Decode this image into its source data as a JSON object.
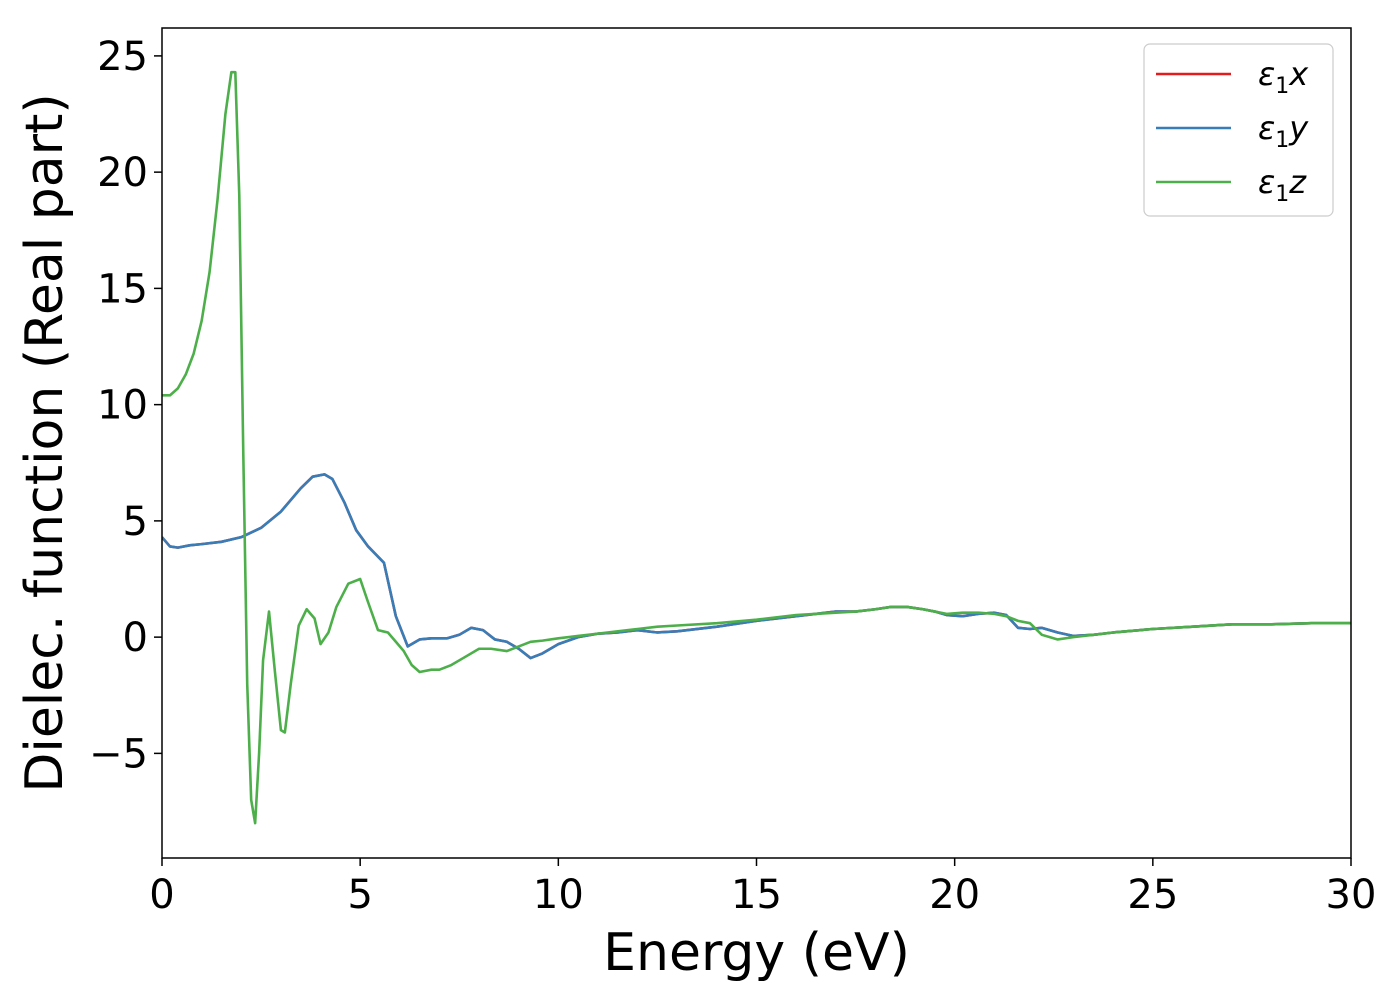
{
  "chart_data": {
    "type": "line",
    "xlabel": "Energy (eV)",
    "ylabel": "Dielec. function (Real part)",
    "xlim": [
      0,
      30
    ],
    "ylim": [
      -9.5,
      26.2
    ],
    "xticks": [
      0,
      5,
      10,
      15,
      20,
      25,
      30
    ],
    "yticks": [
      -5,
      0,
      5,
      10,
      15,
      20,
      25
    ],
    "grid": false,
    "legend_position": "top-right",
    "series": [
      {
        "name": "ε₁x",
        "legend_main": "ε",
        "legend_sub": "1",
        "legend_suffix": "x",
        "color": "#e41a1c",
        "x": [
          0,
          0.2,
          0.4,
          0.7,
          1.0,
          1.5,
          2.0,
          2.5,
          3.0,
          3.5,
          3.8,
          4.1,
          4.3,
          4.6,
          4.9,
          5.2,
          5.6,
          5.9,
          6.2,
          6.5,
          6.8,
          7.2,
          7.5,
          7.8,
          8.1,
          8.4,
          8.7,
          9.0,
          9.3,
          9.6,
          10.0,
          10.5,
          11.0,
          11.5,
          12.0,
          12.5,
          13.0,
          14.0,
          15.0,
          16.0,
          17.0,
          17.5,
          18.0,
          18.4,
          18.8,
          19.2,
          19.5,
          19.8,
          20.2,
          20.6,
          21.0,
          21.3,
          21.6,
          21.9,
          22.2,
          22.6,
          23.0,
          23.5,
          24.0,
          25.0,
          26.0,
          27.0,
          28.0,
          29.0,
          30.0
        ],
        "values": [
          4.3,
          3.9,
          3.85,
          3.95,
          4.0,
          4.1,
          4.3,
          4.7,
          5.4,
          6.4,
          6.9,
          7.0,
          6.8,
          5.8,
          4.6,
          3.9,
          3.2,
          0.9,
          -0.4,
          -0.1,
          -0.05,
          -0.05,
          0.1,
          0.4,
          0.3,
          -0.1,
          -0.2,
          -0.5,
          -0.9,
          -0.7,
          -0.3,
          0.0,
          0.15,
          0.2,
          0.3,
          0.2,
          0.25,
          0.45,
          0.7,
          0.9,
          1.1,
          1.1,
          1.2,
          1.3,
          1.3,
          1.2,
          1.1,
          0.95,
          0.9,
          1.0,
          1.05,
          0.95,
          0.4,
          0.35,
          0.4,
          0.2,
          0.05,
          0.1,
          0.2,
          0.35,
          0.45,
          0.55,
          0.55,
          0.6,
          0.6
        ]
      },
      {
        "name": "ε₁y",
        "legend_main": "ε",
        "legend_sub": "1",
        "legend_suffix": "y",
        "color": "#377eb8",
        "x": [
          0,
          0.2,
          0.4,
          0.7,
          1.0,
          1.5,
          2.0,
          2.5,
          3.0,
          3.5,
          3.8,
          4.1,
          4.3,
          4.6,
          4.9,
          5.2,
          5.6,
          5.9,
          6.2,
          6.5,
          6.8,
          7.2,
          7.5,
          7.8,
          8.1,
          8.4,
          8.7,
          9.0,
          9.3,
          9.6,
          10.0,
          10.5,
          11.0,
          11.5,
          12.0,
          12.5,
          13.0,
          14.0,
          15.0,
          16.0,
          17.0,
          17.5,
          18.0,
          18.4,
          18.8,
          19.2,
          19.5,
          19.8,
          20.2,
          20.6,
          21.0,
          21.3,
          21.6,
          21.9,
          22.2,
          22.6,
          23.0,
          23.5,
          24.0,
          25.0,
          26.0,
          27.0,
          28.0,
          29.0,
          30.0
        ],
        "values": [
          4.3,
          3.9,
          3.85,
          3.95,
          4.0,
          4.1,
          4.3,
          4.7,
          5.4,
          6.4,
          6.9,
          7.0,
          6.8,
          5.8,
          4.6,
          3.9,
          3.2,
          0.9,
          -0.4,
          -0.1,
          -0.05,
          -0.05,
          0.1,
          0.4,
          0.3,
          -0.1,
          -0.2,
          -0.5,
          -0.9,
          -0.7,
          -0.3,
          0.0,
          0.15,
          0.2,
          0.3,
          0.2,
          0.25,
          0.45,
          0.7,
          0.9,
          1.1,
          1.1,
          1.2,
          1.3,
          1.3,
          1.2,
          1.1,
          0.95,
          0.9,
          1.0,
          1.05,
          0.95,
          0.4,
          0.35,
          0.4,
          0.2,
          0.05,
          0.1,
          0.2,
          0.35,
          0.45,
          0.55,
          0.55,
          0.6,
          0.6
        ]
      },
      {
        "name": "ε₁z",
        "legend_main": "ε",
        "legend_sub": "1",
        "legend_suffix": "z",
        "color": "#4daf4a",
        "x": [
          0,
          0.2,
          0.4,
          0.6,
          0.8,
          1.0,
          1.2,
          1.4,
          1.6,
          1.75,
          1.85,
          1.95,
          2.05,
          2.15,
          2.25,
          2.35,
          2.45,
          2.55,
          2.7,
          2.85,
          3.0,
          3.1,
          3.25,
          3.45,
          3.65,
          3.85,
          4.0,
          4.2,
          4.4,
          4.7,
          5.0,
          5.2,
          5.45,
          5.7,
          5.9,
          6.1,
          6.3,
          6.5,
          6.8,
          7.0,
          7.3,
          7.6,
          8.0,
          8.3,
          8.7,
          9.0,
          9.3,
          9.6,
          10.0,
          10.5,
          11.0,
          11.5,
          12.0,
          12.5,
          13.0,
          14.0,
          15.0,
          16.0,
          17.0,
          17.5,
          18.0,
          18.4,
          18.8,
          19.2,
          19.5,
          19.8,
          20.2,
          20.6,
          21.0,
          21.3,
          21.6,
          21.9,
          22.2,
          22.6,
          23.0,
          23.5,
          24.0,
          25.0,
          26.0,
          27.0,
          28.0,
          29.0,
          30.0
        ],
        "values": [
          10.4,
          10.4,
          10.7,
          11.3,
          12.2,
          13.6,
          15.7,
          18.8,
          22.5,
          24.3,
          24.3,
          19.0,
          8.0,
          -2.0,
          -7.0,
          -8.0,
          -5.0,
          -1.0,
          1.1,
          -1.5,
          -4.0,
          -4.1,
          -2.0,
          0.5,
          1.2,
          0.8,
          -0.3,
          0.2,
          1.3,
          2.3,
          2.5,
          1.5,
          0.3,
          0.2,
          -0.2,
          -0.6,
          -1.2,
          -1.5,
          -1.4,
          -1.4,
          -1.2,
          -0.9,
          -0.5,
          -0.5,
          -0.6,
          -0.4,
          -0.2,
          -0.15,
          -0.05,
          0.05,
          0.15,
          0.25,
          0.35,
          0.45,
          0.5,
          0.6,
          0.75,
          0.95,
          1.05,
          1.1,
          1.2,
          1.3,
          1.3,
          1.2,
          1.1,
          1.0,
          1.05,
          1.05,
          1.0,
          0.9,
          0.7,
          0.6,
          0.1,
          -0.1,
          0.0,
          0.1,
          0.2,
          0.35,
          0.45,
          0.55,
          0.55,
          0.6,
          0.6
        ]
      }
    ]
  }
}
